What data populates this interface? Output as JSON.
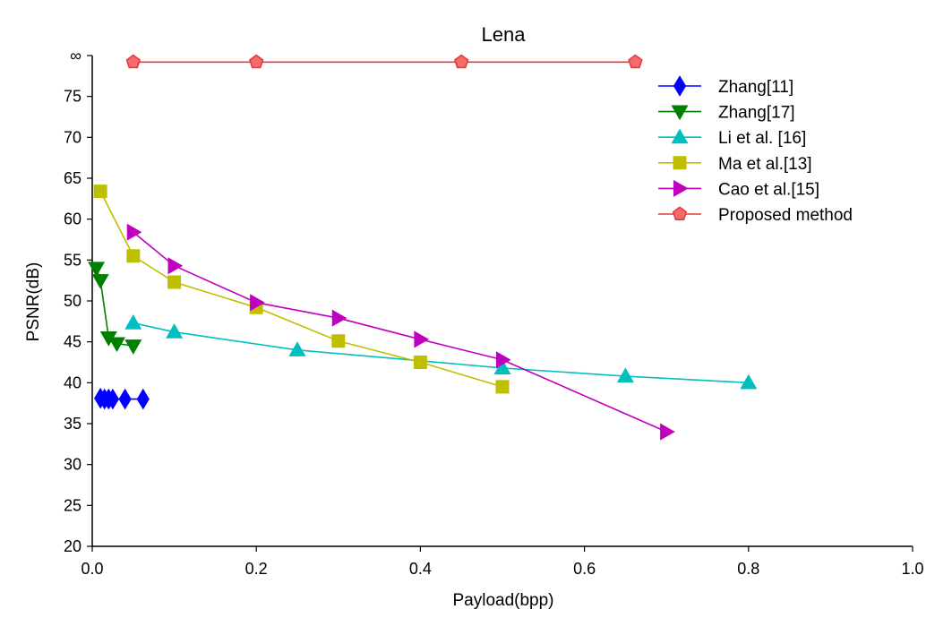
{
  "chart_data": {
    "type": "line",
    "title": "Lena",
    "xlabel": "Payload(bpp)",
    "ylabel": "PSNR(dB)",
    "xlim": [
      0,
      1.0
    ],
    "ylim": [
      20,
      80
    ],
    "xticks": [
      0.0,
      0.2,
      0.4,
      0.6,
      0.8,
      1.0
    ],
    "xtick_labels": [
      "0.0",
      "0.2",
      "0.4",
      "0.6",
      "0.8",
      "1.0"
    ],
    "yticks": [
      20,
      25,
      30,
      35,
      40,
      45,
      50,
      55,
      60,
      65,
      70,
      75,
      80
    ],
    "ytick_labels": [
      "20",
      "25",
      "30",
      "35",
      "40",
      "45",
      "50",
      "55",
      "60",
      "65",
      "70",
      "75",
      "∞"
    ],
    "grid": false,
    "legend_position": "top-right",
    "series": [
      {
        "name": "Zhang[11]",
        "color": "#0000ff",
        "marker": "diamond",
        "points": [
          [
            0.01,
            38.1
          ],
          [
            0.015,
            38.0
          ],
          [
            0.02,
            38.0
          ],
          [
            0.025,
            38.0
          ],
          [
            0.04,
            38.0
          ],
          [
            0.062,
            38.0
          ]
        ]
      },
      {
        "name": "Zhang[17]",
        "color": "#008000",
        "marker": "triangle-down",
        "points": [
          [
            0.005,
            54.0
          ],
          [
            0.01,
            52.5
          ],
          [
            0.02,
            45.5
          ],
          [
            0.03,
            44.8
          ],
          [
            0.05,
            44.5
          ]
        ]
      },
      {
        "name": "Li et al. [16]",
        "color": "#00bfbf",
        "marker": "triangle-up",
        "points": [
          [
            0.05,
            47.3
          ],
          [
            0.1,
            46.2
          ],
          [
            0.25,
            44.0
          ],
          [
            0.5,
            41.8
          ],
          [
            0.65,
            40.8
          ],
          [
            0.8,
            40.0
          ]
        ]
      },
      {
        "name": "Ma et al.[13]",
        "color": "#bfbf00",
        "marker": "square",
        "points": [
          [
            0.01,
            63.4
          ],
          [
            0.05,
            55.5
          ],
          [
            0.1,
            52.3
          ],
          [
            0.2,
            49.2
          ],
          [
            0.3,
            45.1
          ],
          [
            0.4,
            42.5
          ],
          [
            0.5,
            39.5
          ]
        ]
      },
      {
        "name": "Cao et al.[15]",
        "color": "#bf00bf",
        "marker": "triangle-right",
        "points": [
          [
            0.05,
            58.4
          ],
          [
            0.1,
            54.3
          ],
          [
            0.2,
            49.8
          ],
          [
            0.3,
            47.9
          ],
          [
            0.4,
            45.3
          ],
          [
            0.5,
            42.8
          ],
          [
            0.7,
            34.0
          ]
        ]
      },
      {
        "name": "Proposed method",
        "color": "#e63b3b",
        "marker": "pentagon",
        "points": [
          [
            0.05,
            79.2
          ],
          [
            0.2,
            79.2
          ],
          [
            0.45,
            79.2
          ],
          [
            0.662,
            79.2
          ]
        ]
      }
    ]
  }
}
